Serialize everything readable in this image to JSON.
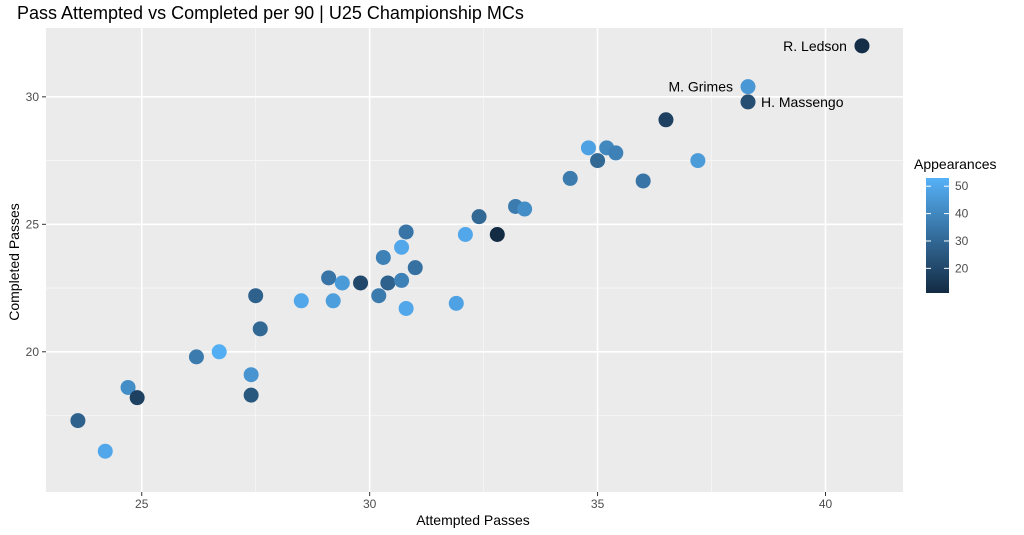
{
  "chart_data": {
    "type": "scatter",
    "title": "Pass Attempted vs Completed per 90 | U25 Championship MCs",
    "xlabel": "Attempted Passes",
    "ylabel": "Completed Passes",
    "xlim": [
      22.9,
      41.7
    ],
    "ylim": [
      14.5,
      32.7
    ],
    "x_ticks": [
      25,
      30,
      35,
      40
    ],
    "y_ticks": [
      20,
      25,
      30
    ],
    "x_minor": [
      27.5,
      32.5,
      37.5
    ],
    "y_minor": [
      17.5,
      22.5,
      27.5
    ],
    "grid": true,
    "legend": {
      "title": "Appearances",
      "position": "right",
      "ticks": [
        20,
        30,
        40,
        50
      ],
      "range": [
        11,
        53
      ],
      "color_low": "#132B43",
      "color_high": "#56B1F7"
    },
    "points": [
      {
        "x": 40.8,
        "y": 32.0,
        "appearances": 12,
        "label": "R. Ledson"
      },
      {
        "x": 38.3,
        "y": 30.4,
        "appearances": 45,
        "label": "M. Grimes"
      },
      {
        "x": 38.3,
        "y": 29.8,
        "appearances": 22,
        "label": "H. Massengo"
      },
      {
        "x": 36.5,
        "y": 29.1,
        "appearances": 18,
        "label": ""
      },
      {
        "x": 34.8,
        "y": 28.0,
        "appearances": 48,
        "label": ""
      },
      {
        "x": 35.2,
        "y": 28.0,
        "appearances": 40,
        "label": ""
      },
      {
        "x": 35.4,
        "y": 27.8,
        "appearances": 38,
        "label": ""
      },
      {
        "x": 35.0,
        "y": 27.5,
        "appearances": 30,
        "label": ""
      },
      {
        "x": 37.2,
        "y": 27.5,
        "appearances": 46,
        "label": ""
      },
      {
        "x": 34.4,
        "y": 26.8,
        "appearances": 36,
        "label": ""
      },
      {
        "x": 36.0,
        "y": 26.7,
        "appearances": 34,
        "label": ""
      },
      {
        "x": 33.2,
        "y": 25.7,
        "appearances": 36,
        "label": ""
      },
      {
        "x": 33.4,
        "y": 25.6,
        "appearances": 42,
        "label": ""
      },
      {
        "x": 32.4,
        "y": 25.3,
        "appearances": 30,
        "label": ""
      },
      {
        "x": 30.8,
        "y": 24.7,
        "appearances": 34,
        "label": ""
      },
      {
        "x": 32.1,
        "y": 24.6,
        "appearances": 50,
        "label": ""
      },
      {
        "x": 32.8,
        "y": 24.6,
        "appearances": 11,
        "label": ""
      },
      {
        "x": 30.7,
        "y": 24.1,
        "appearances": 50,
        "label": ""
      },
      {
        "x": 30.3,
        "y": 23.7,
        "appearances": 38,
        "label": ""
      },
      {
        "x": 31.0,
        "y": 23.3,
        "appearances": 33,
        "label": ""
      },
      {
        "x": 29.1,
        "y": 22.9,
        "appearances": 34,
        "label": ""
      },
      {
        "x": 29.4,
        "y": 22.7,
        "appearances": 46,
        "label": ""
      },
      {
        "x": 29.8,
        "y": 22.7,
        "appearances": 20,
        "label": ""
      },
      {
        "x": 30.4,
        "y": 22.7,
        "appearances": 28,
        "label": ""
      },
      {
        "x": 30.7,
        "y": 22.8,
        "appearances": 38,
        "label": ""
      },
      {
        "x": 30.2,
        "y": 22.2,
        "appearances": 36,
        "label": ""
      },
      {
        "x": 27.5,
        "y": 22.2,
        "appearances": 28,
        "label": ""
      },
      {
        "x": 28.5,
        "y": 22.0,
        "appearances": 50,
        "label": ""
      },
      {
        "x": 29.2,
        "y": 22.0,
        "appearances": 47,
        "label": ""
      },
      {
        "x": 30.8,
        "y": 21.7,
        "appearances": 50,
        "label": ""
      },
      {
        "x": 31.9,
        "y": 21.9,
        "appearances": 48,
        "label": ""
      },
      {
        "x": 27.6,
        "y": 20.9,
        "appearances": 30,
        "label": ""
      },
      {
        "x": 26.2,
        "y": 19.8,
        "appearances": 36,
        "label": ""
      },
      {
        "x": 26.7,
        "y": 20.0,
        "appearances": 52,
        "label": ""
      },
      {
        "x": 27.4,
        "y": 19.1,
        "appearances": 44,
        "label": ""
      },
      {
        "x": 24.7,
        "y": 18.6,
        "appearances": 42,
        "label": ""
      },
      {
        "x": 24.9,
        "y": 18.2,
        "appearances": 18,
        "label": ""
      },
      {
        "x": 27.4,
        "y": 18.3,
        "appearances": 25,
        "label": ""
      },
      {
        "x": 23.6,
        "y": 17.3,
        "appearances": 28,
        "label": ""
      },
      {
        "x": 24.2,
        "y": 16.1,
        "appearances": 50,
        "label": ""
      }
    ]
  }
}
